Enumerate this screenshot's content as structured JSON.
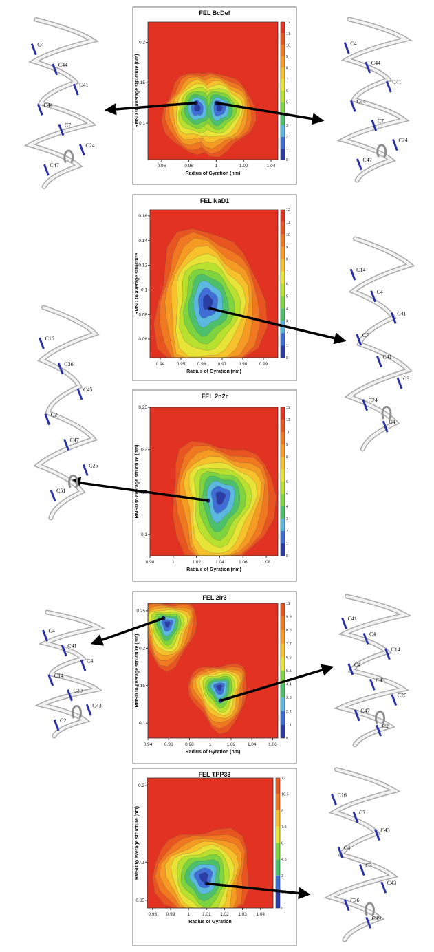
{
  "chart_data": [
    {
      "type": "heatmap",
      "title": "FEL BcDef",
      "xlabel": "Radius of Gyration (nm)",
      "ylabel": "RMSD to average structure (nm)",
      "xlim": [
        0.95,
        1.045
      ],
      "ylim": [
        0.055,
        0.225
      ],
      "xticks": [
        0.96,
        0.98,
        1,
        1.02,
        1.04
      ],
      "yticks": [
        0.1,
        0.15,
        0.2
      ],
      "colorbar": {
        "min": 0,
        "max": 12,
        "ticks": [
          0,
          1,
          2,
          3,
          4,
          5,
          6,
          7,
          8,
          9,
          10,
          11,
          12
        ]
      },
      "minima": [
        {
          "x": 0.985,
          "y": 0.125
        },
        {
          "x": 1.0,
          "y": 0.125
        }
      ],
      "residues_left": [
        "C4",
        "C44",
        "C41",
        "C44",
        "C7",
        "C24",
        "C47"
      ],
      "residues_right": [
        "C4",
        "C44",
        "C41",
        "C44",
        "C7",
        "C24",
        "C47"
      ]
    },
    {
      "type": "heatmap",
      "title": "FEL NaD1",
      "xlabel": "Radius of Gyration (nm)",
      "ylabel": "RMSD to average structure",
      "xlim": [
        0.935,
        0.997
      ],
      "ylim": [
        0.045,
        0.165
      ],
      "xticks": [
        0.94,
        0.95,
        0.96,
        0.97,
        0.98,
        0.99
      ],
      "yticks": [
        0.06,
        0.08,
        0.1,
        0.12,
        0.14,
        0.16
      ],
      "colorbar": {
        "min": 0,
        "max": 12,
        "ticks": [
          0,
          1,
          2,
          3,
          4,
          5,
          6,
          7,
          8,
          9,
          10,
          11,
          12
        ]
      },
      "minima": [
        {
          "x": 0.964,
          "y": 0.085
        }
      ],
      "residues_right": [
        "C14",
        "C4",
        "C41",
        "C7",
        "C41",
        "C3",
        "C24",
        "C4"
      ]
    },
    {
      "type": "heatmap",
      "title": "FEL 2n2r",
      "xlabel": "Radius of Gyration (nm)",
      "ylabel": "RMSD to average structure (nm)",
      "xlim": [
        0.98,
        1.09
      ],
      "ylim": [
        0.075,
        0.25
      ],
      "xticks": [
        0.98,
        1,
        1.02,
        1.04,
        1.06,
        1.08
      ],
      "yticks": [
        0.1,
        0.15,
        0.2,
        0.25
      ],
      "colorbar": {
        "min": 0,
        "max": 12,
        "ticks": [
          0,
          1,
          2,
          3,
          4,
          5,
          6,
          7,
          8,
          9,
          10,
          11,
          12
        ]
      },
      "minima": [
        {
          "x": 1.03,
          "y": 0.14
        }
      ],
      "residues_left": [
        "C15",
        "C36",
        "C45",
        "C2",
        "C47",
        "C25",
        "C51"
      ]
    },
    {
      "type": "heatmap",
      "title": "FEL 2lr3",
      "xlabel": "Radius of Gyration (nm)",
      "ylabel": "RMSD to average structure (nm)",
      "xlim": [
        0.94,
        1.065
      ],
      "ylim": [
        0.08,
        0.26
      ],
      "xticks": [
        0.94,
        0.96,
        0.98,
        1,
        1.02,
        1.04,
        1.06
      ],
      "yticks": [
        0.1,
        0.15,
        0.2,
        0.25
      ],
      "colorbar": {
        "min": 0,
        "max": 11,
        "ticks": [
          0,
          1.1,
          2.2,
          3.3,
          4.4,
          5.5,
          6.6,
          7.7,
          8.8,
          9.9,
          11
        ]
      },
      "minima": [
        {
          "x": 0.955,
          "y": 0.24
        },
        {
          "x": 1.01,
          "y": 0.13
        }
      ],
      "residues_left": [
        "C4",
        "C41",
        "C4",
        "C14",
        "C20",
        "C43",
        "C2"
      ],
      "residues_right": [
        "C41",
        "C4",
        "C14",
        "C4",
        "C43",
        "C20",
        "C47",
        "C2"
      ]
    },
    {
      "type": "heatmap",
      "title": "FEL TPP33",
      "xlabel": "Radius of Gyration",
      "ylabel": "RMSD to average structure (nm)",
      "xlim": [
        0.977,
        1.047
      ],
      "ylim": [
        0.04,
        0.21
      ],
      "xticks": [
        0.98,
        0.99,
        1,
        1.01,
        1.02,
        1.03,
        1.04
      ],
      "yticks": [
        0.05,
        0.1,
        0.2
      ],
      "colorbar": {
        "min": 0,
        "max": 12,
        "ticks": [
          0,
          1.5,
          3,
          4.5,
          6,
          7.5,
          9,
          10.5,
          12
        ]
      },
      "minima": [
        {
          "x": 1.01,
          "y": 0.072
        }
      ],
      "residues_right": [
        "C16",
        "C7",
        "C43",
        "C4",
        "C3",
        "C43",
        "C26",
        "C49"
      ]
    }
  ]
}
